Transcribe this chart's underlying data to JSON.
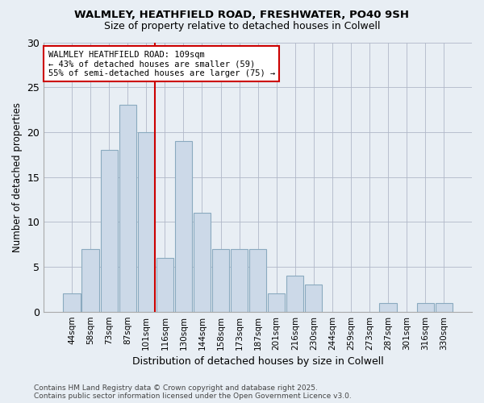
{
  "title1": "WALMLEY, HEATHFIELD ROAD, FRESHWATER, PO40 9SH",
  "title2": "Size of property relative to detached houses in Colwell",
  "xlabel": "Distribution of detached houses by size in Colwell",
  "ylabel": "Number of detached properties",
  "categories": [
    "44sqm",
    "58sqm",
    "73sqm",
    "87sqm",
    "101sqm",
    "116sqm",
    "130sqm",
    "144sqm",
    "158sqm",
    "173sqm",
    "187sqm",
    "201sqm",
    "216sqm",
    "230sqm",
    "244sqm",
    "259sqm",
    "273sqm",
    "287sqm",
    "301sqm",
    "316sqm",
    "330sqm"
  ],
  "values": [
    2,
    7,
    18,
    23,
    20,
    6,
    19,
    11,
    7,
    7,
    7,
    2,
    4,
    3,
    0,
    0,
    0,
    1,
    0,
    1,
    1
  ],
  "bar_color": "#ccd9e8",
  "bar_edgecolor": "#8aaabf",
  "vline_color": "#cc0000",
  "annotation_text": "WALMLEY HEATHFIELD ROAD: 109sqm\n← 43% of detached houses are smaller (59)\n55% of semi-detached houses are larger (75) →",
  "annotation_box_color": "#ffffff",
  "annotation_box_edgecolor": "#cc0000",
  "ylim": [
    0,
    30
  ],
  "yticks": [
    0,
    5,
    10,
    15,
    20,
    25,
    30
  ],
  "footer1": "Contains HM Land Registry data © Crown copyright and database right 2025.",
  "footer2": "Contains public sector information licensed under the Open Government Licence v3.0.",
  "fig_facecolor": "#e8eef4",
  "plot_facecolor": "#e8eef4"
}
